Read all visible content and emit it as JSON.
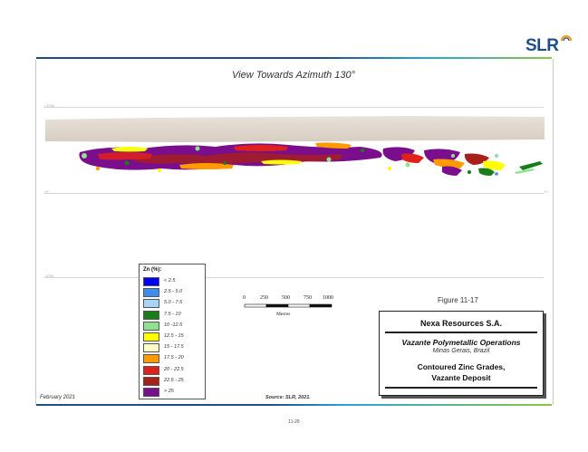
{
  "header": {
    "logo_text": "SLR"
  },
  "view": {
    "title": "View Towards Azimuth 130°"
  },
  "elevations": {
    "upper": "+1000",
    "middle": "+0",
    "lower": "-1000"
  },
  "legend": {
    "title": "Zn (%):",
    "items": [
      {
        "label": "< 2.5",
        "color": "#0000ff"
      },
      {
        "label": "2.5 - 5.0",
        "color": "#3b8ef0"
      },
      {
        "label": "5.0 - 7.5",
        "color": "#a9d4f5"
      },
      {
        "label": "7.5 - 10",
        "color": "#1a7d1a"
      },
      {
        "label": "10 -12.5",
        "color": "#8fe08f"
      },
      {
        "label": "12.5 - 15",
        "color": "#ffff00"
      },
      {
        "label": "15 - 17.5",
        "color": "#fffbc8"
      },
      {
        "label": "17.5 - 20",
        "color": "#ff9a00"
      },
      {
        "label": "20 - 22.5",
        "color": "#e0201b"
      },
      {
        "label": "22.5 - 25",
        "color": "#a8201a"
      },
      {
        "label": "> 25",
        "color": "#7a0e8c"
      }
    ]
  },
  "scale_bar": {
    "ticks": [
      "0",
      "250",
      "500",
      "750",
      "1000"
    ],
    "unit": "Metres"
  },
  "figure": {
    "number": "Figure 11-17"
  },
  "title_block": {
    "company": "Nexa Resources S.A.",
    "project": "Vazante Polymetallic Operations",
    "location": "Minas Gerais, Brazil",
    "figure_title_line1": "Contoured Zinc Grades,",
    "figure_title_line2": "Vazante Deposit"
  },
  "footer": {
    "date": "February 2021",
    "source": "Source: SLR, 2021.",
    "page": "11-28"
  }
}
